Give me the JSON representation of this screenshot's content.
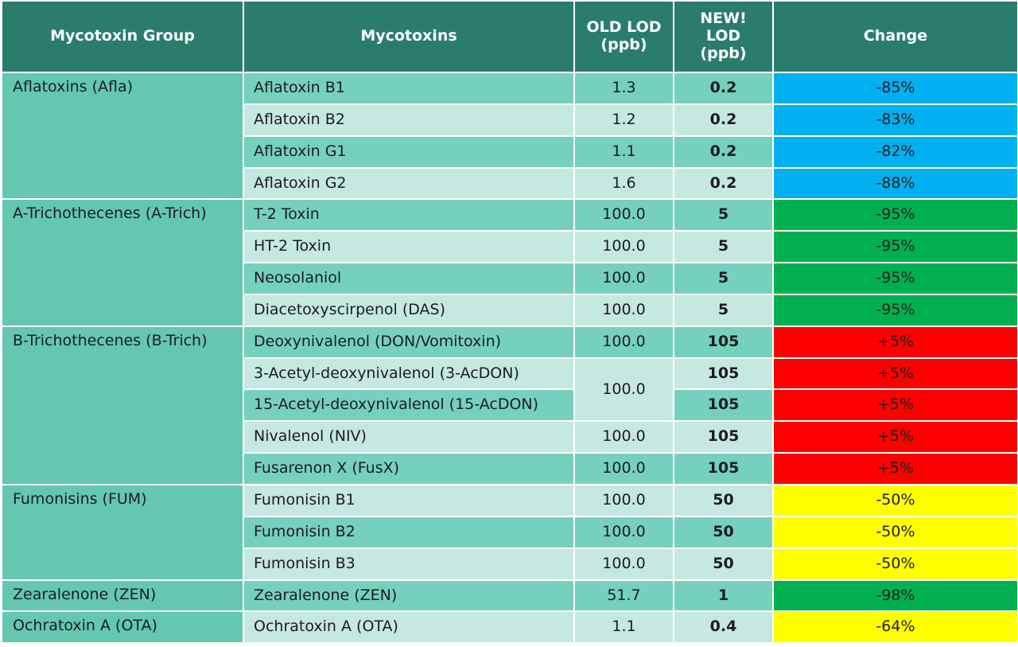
{
  "headers": {
    "group": "Mycotoxin Group",
    "mycotoxins": "Mycotoxins",
    "old_lod_line1": "OLD LOD",
    "old_lod_line2": "(ppb)",
    "new_lod_line1": "NEW!",
    "new_lod_line2": "LOD",
    "new_lod_line3": "(ppb)",
    "change": "Change"
  },
  "colors": {
    "header": "#2a7d6d",
    "group_cell": "#63c7b2",
    "row_dark": "#76d0be",
    "row_light": "#c5e8e1",
    "change_blue": "#00b0f0",
    "change_green": "#00b050",
    "change_red": "#ff0000",
    "change_yellow": "#ffff00"
  },
  "rows": [
    {
      "group": "Aflatoxins (Afla)",
      "mycotoxin": "Aflatoxin B1",
      "old": "1.3",
      "new": "0.2",
      "change": "-85%",
      "color": "#00b0f0"
    },
    {
      "mycotoxin": "Aflatoxin B2",
      "old": "1.2",
      "new": "0.2",
      "change": "-83%",
      "color": "#00b0f0"
    },
    {
      "mycotoxin": "Aflatoxin G1",
      "old": "1.1",
      "new": "0.2",
      "change": "-82%",
      "color": "#00b0f0"
    },
    {
      "mycotoxin": "Aflatoxin G2",
      "old": "1.6",
      "new": "0.2",
      "change": "-88%",
      "color": "#00b0f0"
    },
    {
      "group": "A-Trichothecenes (A-Trich)",
      "mycotoxin": "T-2 Toxin",
      "old": "100.0",
      "new": "5",
      "change": "-95%",
      "color": "#00b050"
    },
    {
      "mycotoxin": "HT-2 Toxin",
      "old": "100.0",
      "new": "5",
      "change": "-95%",
      "color": "#00b050"
    },
    {
      "mycotoxin": "Neosolaniol",
      "old": "100.0",
      "new": "5",
      "change": "-95%",
      "color": "#00b050"
    },
    {
      "mycotoxin": "Diacetoxyscirpenol (DAS)",
      "old": "100.0",
      "new": "5",
      "change": "-95%",
      "color": "#00b050"
    },
    {
      "group": "B-Trichothecenes (B-Trich)",
      "mycotoxin": "Deoxynivalenol (DON/Vomitoxin)",
      "old": "100.0",
      "new": "105",
      "change": "+5%",
      "color": "#ff0000"
    },
    {
      "mycotoxin": "3-Acetyl-deoxynivalenol (3-AcDON)",
      "old": "100.0",
      "new": "105",
      "change": "+5%",
      "color": "#ff0000"
    },
    {
      "mycotoxin": "15-Acetyl-deoxynivalenol (15-AcDON)",
      "new": "105",
      "change": "+5%",
      "color": "#ff0000"
    },
    {
      "mycotoxin": "Nivalenol (NIV)",
      "old": "100.0",
      "new": "105",
      "change": "+5%",
      "color": "#ff0000"
    },
    {
      "mycotoxin": "Fusarenon X (FusX)",
      "old": "100.0",
      "new": "105",
      "change": "+5%",
      "color": "#ff0000"
    },
    {
      "group": "Fumonisins (FUM)",
      "mycotoxin": "Fumonisin B1",
      "old": "100.0",
      "new": "50",
      "change": "-50%",
      "color": "#ffff00"
    },
    {
      "mycotoxin": "Fumonisin B2",
      "old": "100.0",
      "new": "50",
      "change": "-50%",
      "color": "#ffff00"
    },
    {
      "mycotoxin": "Fumonisin B3",
      "old": "100.0",
      "new": "50",
      "change": "-50%",
      "color": "#ffff00"
    },
    {
      "group": "Zearalenone (ZEN)",
      "mycotoxin": "Zearalenone (ZEN)",
      "old": "51.7",
      "new": "1",
      "change": "-98%",
      "color": "#00b050"
    },
    {
      "group": "Ochratoxin A (OTA)",
      "mycotoxin": "Ochratoxin A (OTA)",
      "old": "1.1",
      "new": "0.4",
      "change": "-64%",
      "color": "#ffff00"
    }
  ]
}
